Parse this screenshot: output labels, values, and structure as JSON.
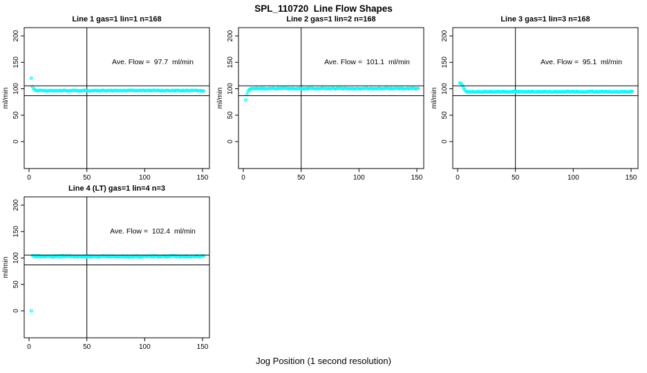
{
  "figure": {
    "title": "SPL_110720  Line Flow Shapes",
    "xlabel": "Jog Position (1 second resolution)",
    "background": "#FFFFFF",
    "axis_color": "#000000",
    "marker_color": "#00FFFF"
  },
  "chart_data": [
    {
      "type": "scatter",
      "title": "Line 1 gas=1 lin=1 n=168",
      "gas": 1,
      "lin": 1,
      "n": 168,
      "annotation": "Ave. Flow =  97.7  ml/min",
      "ave_flow_ml_min": 97.7,
      "ylabel": "ml/min",
      "xticks": [
        0,
        50,
        100,
        150
      ],
      "yticks": [
        0,
        50,
        100,
        150,
        200
      ],
      "xlim": [
        -6,
        156
      ],
      "ylim": [
        -51,
        216
      ],
      "grid": false,
      "ref_hlines": [
        105.5,
        87
      ],
      "ref_vlines": [
        50
      ],
      "series": {
        "x_start": 2,
        "x_end": 151,
        "baseline": 96.5,
        "noise": 0.7,
        "transient": [
          [
            2,
            120
          ],
          [
            3,
            104
          ],
          [
            4,
            100
          ],
          [
            5,
            98
          ]
        ]
      }
    },
    {
      "type": "scatter",
      "title": "Line 2 gas=1 lin=2 n=168",
      "gas": 1,
      "lin": 2,
      "n": 168,
      "annotation": "Ave. Flow =  101.1  ml/min",
      "ave_flow_ml_min": 101.1,
      "ylabel": "ml/min",
      "xticks": [
        0,
        50,
        100,
        150
      ],
      "yticks": [
        0,
        50,
        100,
        150,
        200
      ],
      "xlim": [
        -6,
        156
      ],
      "ylim": [
        -51,
        216
      ],
      "grid": false,
      "ref_hlines": [
        105.5,
        87
      ],
      "ref_vlines": [
        50
      ],
      "series": {
        "x_start": 2,
        "x_end": 151,
        "baseline": 100.5,
        "noise": 0.8,
        "transient": [
          [
            2,
            79
          ],
          [
            3,
            89
          ],
          [
            4,
            95
          ],
          [
            5,
            98
          ],
          [
            6,
            99.5
          ]
        ]
      }
    },
    {
      "type": "scatter",
      "title": "Line 3 gas=1 lin=3 n=168",
      "gas": 1,
      "lin": 3,
      "n": 168,
      "annotation": "Ave. Flow =  95.1  ml/min",
      "ave_flow_ml_min": 95.1,
      "ylabel": "ml/min",
      "xticks": [
        0,
        50,
        100,
        150
      ],
      "yticks": [
        0,
        50,
        100,
        150,
        200
      ],
      "xlim": [
        -6,
        156
      ],
      "ylim": [
        -51,
        216
      ],
      "grid": false,
      "ref_hlines": [
        105.5,
        87
      ],
      "ref_vlines": [
        50
      ],
      "series": {
        "x_start": 2,
        "x_end": 151,
        "baseline": 94.5,
        "noise": 0.7,
        "transient": [
          [
            2,
            111
          ],
          [
            3,
            110
          ],
          [
            4,
            107
          ],
          [
            5,
            102
          ],
          [
            6,
            98
          ],
          [
            7,
            96
          ]
        ]
      }
    },
    {
      "type": "scatter",
      "title": "Line 4 (LT) gas=1 lin=4 n=3",
      "gas": 1,
      "lin": 4,
      "n": 3,
      "annotation": "Ave. Flow =  102.4  ml/min",
      "ave_flow_ml_min": 102.4,
      "ylabel": "ml/min",
      "xticks": [
        0,
        50,
        100,
        150
      ],
      "yticks": [
        0,
        50,
        100,
        150,
        200
      ],
      "xlim": [
        -6,
        156
      ],
      "ylim": [
        -51,
        216
      ],
      "grid": false,
      "ref_hlines": [
        105.5,
        87
      ],
      "ref_vlines": [
        50
      ],
      "series": {
        "x_start": 2,
        "x_end": 151,
        "baseline": 103,
        "noise": 1.3,
        "transient": [
          [
            2,
            0
          ],
          [
            3,
            104.5
          ],
          [
            4,
            104
          ]
        ]
      }
    }
  ]
}
